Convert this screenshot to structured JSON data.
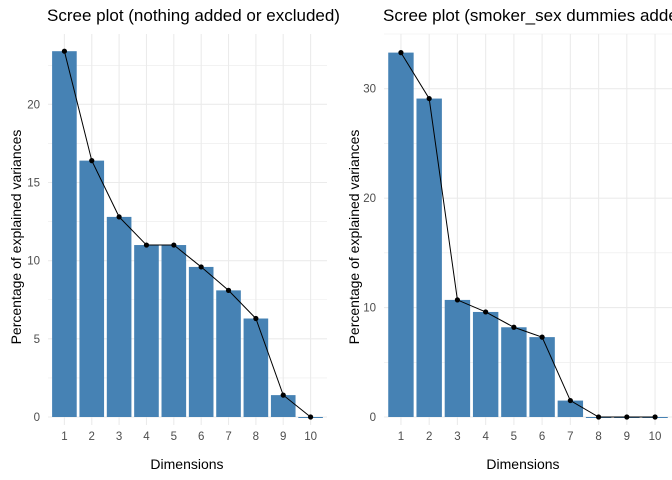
{
  "chart_data": [
    {
      "type": "bar",
      "title": "Scree plot (nothing added or excluded)",
      "xlabel": "Dimensions",
      "ylabel": "Percentage of explained variances",
      "categories": [
        "1",
        "2",
        "3",
        "4",
        "5",
        "6",
        "7",
        "8",
        "9",
        "10"
      ],
      "values": [
        23.4,
        16.4,
        12.8,
        11.0,
        11.0,
        9.6,
        8.1,
        6.3,
        1.4,
        0.0
      ],
      "ylim": [
        0,
        24.5
      ],
      "yticks": [
        0,
        5,
        10,
        15,
        20
      ],
      "overlay": "line-with-points",
      "bar_color": "#4682B4",
      "line_color": "#000000",
      "grid": true
    },
    {
      "type": "bar",
      "title": "Scree plot (smoker_sex dummies added)",
      "xlabel": "Dimensions",
      "ylabel": "Percentage of explained variances",
      "categories": [
        "1",
        "2",
        "3",
        "4",
        "5",
        "6",
        "7",
        "8",
        "9",
        "10"
      ],
      "values": [
        33.3,
        29.1,
        10.7,
        9.6,
        8.2,
        7.3,
        1.5,
        0.0,
        0.0,
        0.0
      ],
      "ylim": [
        0,
        35.0
      ],
      "yticks": [
        0,
        10,
        20,
        30
      ],
      "overlay": "line-with-points",
      "bar_color": "#4682B4",
      "line_color": "#000000",
      "grid": true
    }
  ]
}
